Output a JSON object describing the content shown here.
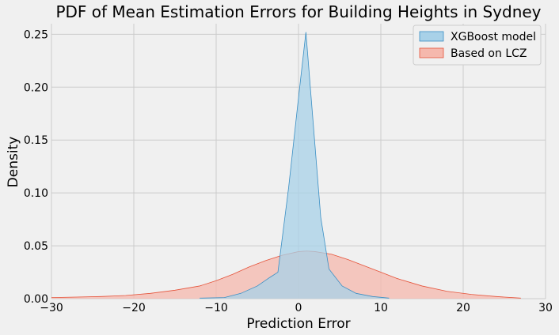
{
  "chart_data": {
    "type": "area",
    "title": "PDF of Mean Estimation Errors for Building Heights in Sydney",
    "xlabel": "Prediction Error",
    "ylabel": "Density",
    "xlim": [
      -30,
      30
    ],
    "ylim": [
      0,
      0.26
    ],
    "xticks": [
      -30,
      -20,
      -10,
      0,
      10,
      20,
      30
    ],
    "yticks": [
      0.0,
      0.05,
      0.1,
      0.15,
      0.2,
      0.25
    ],
    "xtick_labels": [
      "−30",
      "−20",
      "−10",
      "0",
      "10",
      "20",
      "30"
    ],
    "ytick_labels": [
      "0.00",
      "0.05",
      "0.10",
      "0.15",
      "0.20",
      "0.25"
    ],
    "grid": true,
    "legend": "top-right",
    "series": [
      {
        "name": "Based on LCZ",
        "color": "#e5533a",
        "fill": "#f5b8ad",
        "x": [
          -30,
          -27,
          -24,
          -21,
          -18,
          -15,
          -12,
          -10,
          -8,
          -6,
          -4,
          -2,
          0,
          1,
          2,
          4,
          6,
          8,
          10,
          12,
          15,
          18,
          21,
          24,
          27
        ],
        "y": [
          0.001,
          0.0015,
          0.002,
          0.003,
          0.005,
          0.008,
          0.012,
          0.017,
          0.023,
          0.03,
          0.036,
          0.041,
          0.0445,
          0.045,
          0.0445,
          0.042,
          0.037,
          0.031,
          0.025,
          0.019,
          0.012,
          0.007,
          0.004,
          0.002,
          0.0005
        ]
      },
      {
        "name": "XGBoost model",
        "color": "#3a8fc4",
        "fill": "#a8d1e8",
        "x": [
          -12,
          -9,
          -7,
          -5,
          -3.5,
          -2.5,
          -1.2,
          0,
          0.9,
          2,
          2.7,
          3.7,
          5.3,
          7,
          9,
          11
        ],
        "y": [
          0.0005,
          0.001,
          0.005,
          0.012,
          0.02,
          0.025,
          0.105,
          0.19,
          0.252,
          0.145,
          0.077,
          0.028,
          0.012,
          0.005,
          0.002,
          0.0005
        ]
      }
    ]
  }
}
